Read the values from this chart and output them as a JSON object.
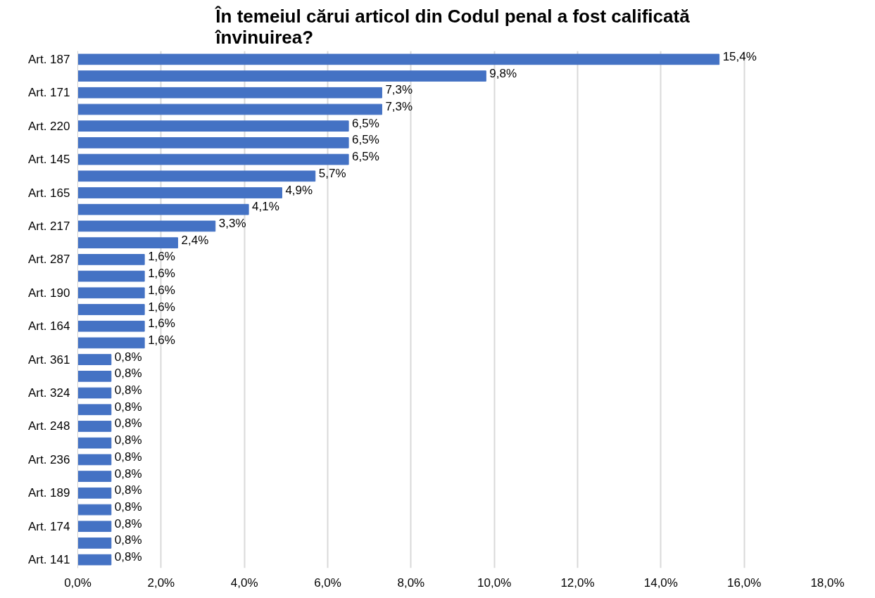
{
  "chart_data": {
    "type": "bar",
    "orientation": "horizontal",
    "title": "În temeiul cărui articol din Codul penal a fost calificată învinuirea?",
    "categories": [
      "Art. 187",
      null,
      "Art. 171",
      null,
      "Art. 220",
      null,
      "Art. 145",
      null,
      "Art. 165",
      null,
      "Art. 217",
      null,
      "Art. 287",
      null,
      "Art. 190",
      null,
      "Art. 164",
      null,
      "Art. 361",
      null,
      "Art. 324",
      null,
      "Art. 248",
      null,
      "Art. 236",
      null,
      "Art. 189",
      null,
      "Art. 174",
      null,
      "Art. 141"
    ],
    "values": [
      15.4,
      9.8,
      7.3,
      7.3,
      6.5,
      6.5,
      6.5,
      5.7,
      4.9,
      4.1,
      3.3,
      2.4,
      1.6,
      1.6,
      1.6,
      1.6,
      1.6,
      1.6,
      0.8,
      0.8,
      0.8,
      0.8,
      0.8,
      0.8,
      0.8,
      0.8,
      0.8,
      0.8,
      0.8,
      0.8,
      0.8
    ],
    "value_labels": [
      "15,4%",
      "9,8%",
      "7,3%",
      "7,3%",
      "6,5%",
      "6,5%",
      "6,5%",
      "5,7%",
      "4,9%",
      "4,1%",
      "3,3%",
      "2,4%",
      "1,6%",
      "1,6%",
      "1,6%",
      "1,6%",
      "1,6%",
      "1,6%",
      "0,8%",
      "0,8%",
      "0,8%",
      "0,8%",
      "0,8%",
      "0,8%",
      "0,8%",
      "0,8%",
      "0,8%",
      "0,8%",
      "0,8%",
      "0,8%",
      "0,8%"
    ],
    "color": "#4472c4",
    "xlim": [
      0,
      18
    ],
    "xticks": [
      {
        "value": 0,
        "label": "0,0%"
      },
      {
        "value": 2,
        "label": "2,0%"
      },
      {
        "value": 4,
        "label": "4,0%"
      },
      {
        "value": 6,
        "label": "6,0%"
      },
      {
        "value": 8,
        "label": "8,0%"
      },
      {
        "value": 10,
        "label": "10,0%"
      },
      {
        "value": 12,
        "label": "12,0%"
      },
      {
        "value": 14,
        "label": "14,0%"
      },
      {
        "value": 16,
        "label": "16,0%"
      },
      {
        "value": 18,
        "label": "18,0%"
      }
    ],
    "grid": "x"
  }
}
